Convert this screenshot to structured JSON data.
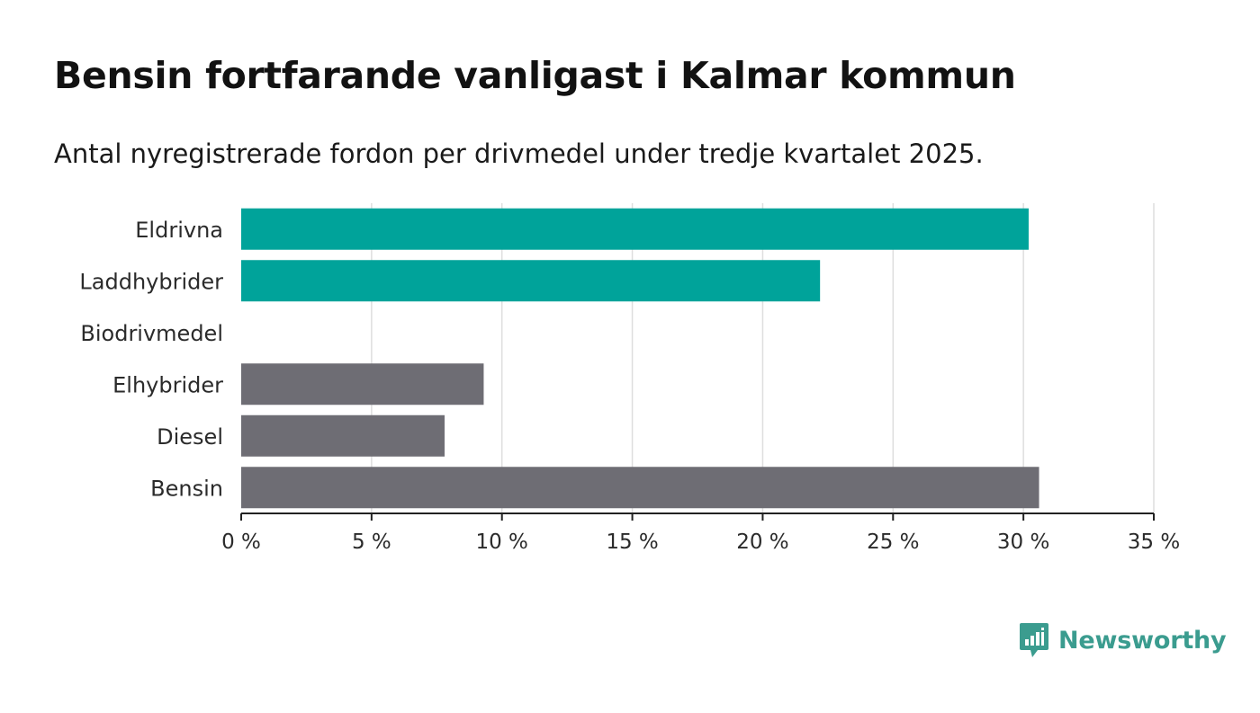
{
  "title": "Bensin fortfarande vanligast i Kalmar kommun",
  "subtitle": "Antal nyregistrerade fordon per drivmedel under tredje kvartalet 2025.",
  "brand": {
    "name": "Newsworthy",
    "logo_icon": "newsworthy-logo-icon",
    "color": "#3b9c8f"
  },
  "chart_data": {
    "type": "bar",
    "orientation": "horizontal",
    "categories": [
      "Eldrivna",
      "Laddhybrider",
      "Biodrivmedel",
      "Elhybrider",
      "Diesel",
      "Bensin"
    ],
    "values": [
      30.2,
      22.2,
      0,
      9.3,
      7.8,
      30.6
    ],
    "colors": [
      "#00a39a",
      "#00a39a",
      "#00a39a",
      "#6e6d74",
      "#6e6d74",
      "#6e6d74"
    ],
    "xlim": [
      0,
      35
    ],
    "xticks": [
      0,
      5,
      10,
      15,
      20,
      25,
      30,
      35
    ],
    "tick_suffix": " %",
    "grid": true,
    "legend": "none"
  }
}
